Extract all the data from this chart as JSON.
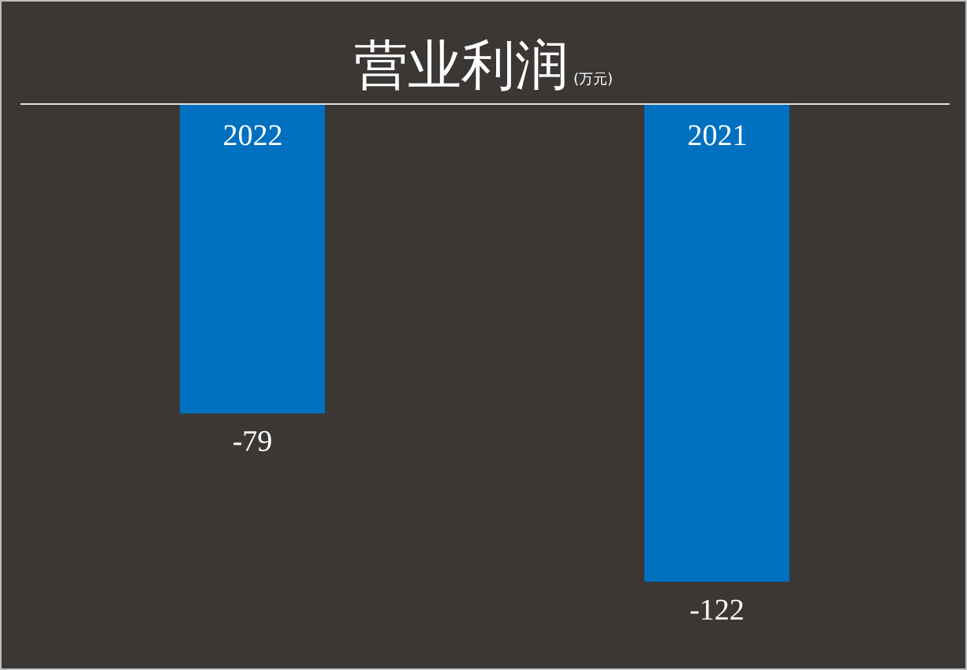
{
  "chart_data": {
    "type": "bar",
    "title": "营业利润",
    "subtitle": "(万元)",
    "categories": [
      "2022",
      "2021"
    ],
    "values": [
      -79,
      -122
    ],
    "color": "#0070c0",
    "data_labels": true,
    "tick_labels": "x"
  }
}
